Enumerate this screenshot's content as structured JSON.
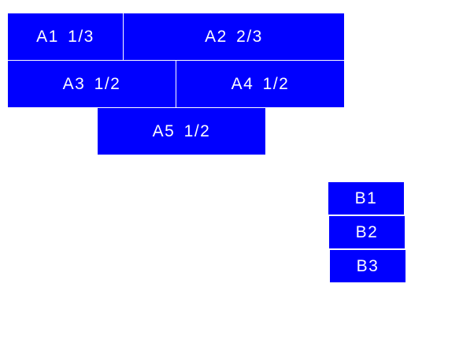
{
  "group_a": {
    "items": [
      {
        "label": "A1  1/3"
      },
      {
        "label": "A2  2/3"
      },
      {
        "label": "A3  1/2"
      },
      {
        "label": "A4  1/2"
      },
      {
        "label": "A5  1/2"
      }
    ]
  },
  "group_b": {
    "items": [
      {
        "label": "B1"
      },
      {
        "label": "B2"
      },
      {
        "label": "B3"
      }
    ]
  },
  "colors": {
    "box": "#0000ff",
    "text": "#ffffff",
    "background": "#ffffff"
  }
}
